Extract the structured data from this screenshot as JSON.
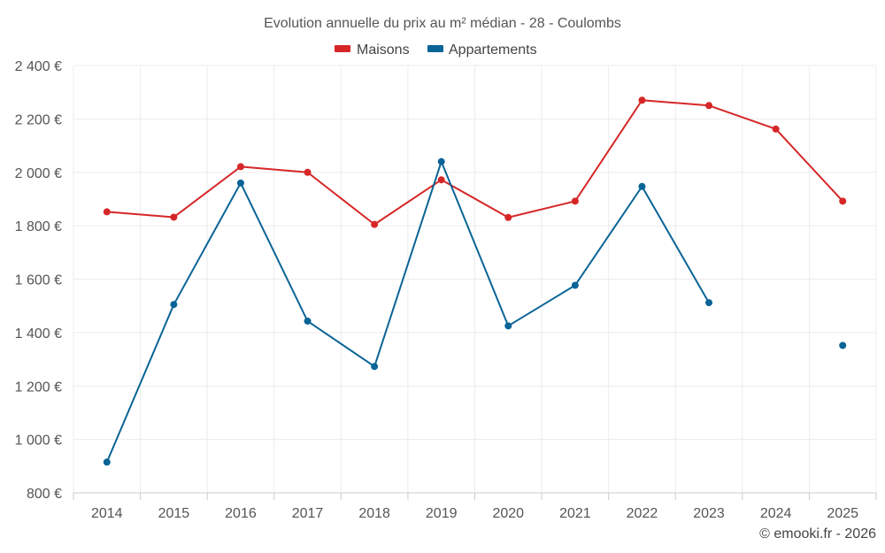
{
  "chart_data": {
    "type": "line",
    "title": "Evolution annuelle du prix au m² médian - 28 - Coulombs",
    "xlabel": "",
    "ylabel": "",
    "categories": [
      "2014",
      "2015",
      "2016",
      "2017",
      "2018",
      "2019",
      "2020",
      "2021",
      "2022",
      "2023",
      "2024",
      "2025"
    ],
    "ylim": [
      800,
      2400
    ],
    "yticks": [
      800,
      1000,
      1200,
      1400,
      1600,
      1800,
      2000,
      2200,
      2400
    ],
    "ytick_labels": [
      "800 €",
      "1 000 €",
      "1 200 €",
      "1 400 €",
      "1 600 €",
      "1 800 €",
      "2 000 €",
      "2 200 €",
      "2 400 €"
    ],
    "grid": true,
    "legend_position": "top-center",
    "series": [
      {
        "name": "Maisons",
        "color": "#d62728",
        "values": [
          1852,
          1832,
          2021,
          2000,
          1805,
          1972,
          1831,
          1892,
          2270,
          2250,
          2162,
          1892
        ]
      },
      {
        "name": "Appartements",
        "color": "#0a6496",
        "values": [
          915,
          1505,
          1960,
          1443,
          1273,
          2040,
          1425,
          1577,
          1947,
          1512,
          null,
          1352
        ]
      }
    ]
  },
  "credit": "© emooki.fr - 2026"
}
